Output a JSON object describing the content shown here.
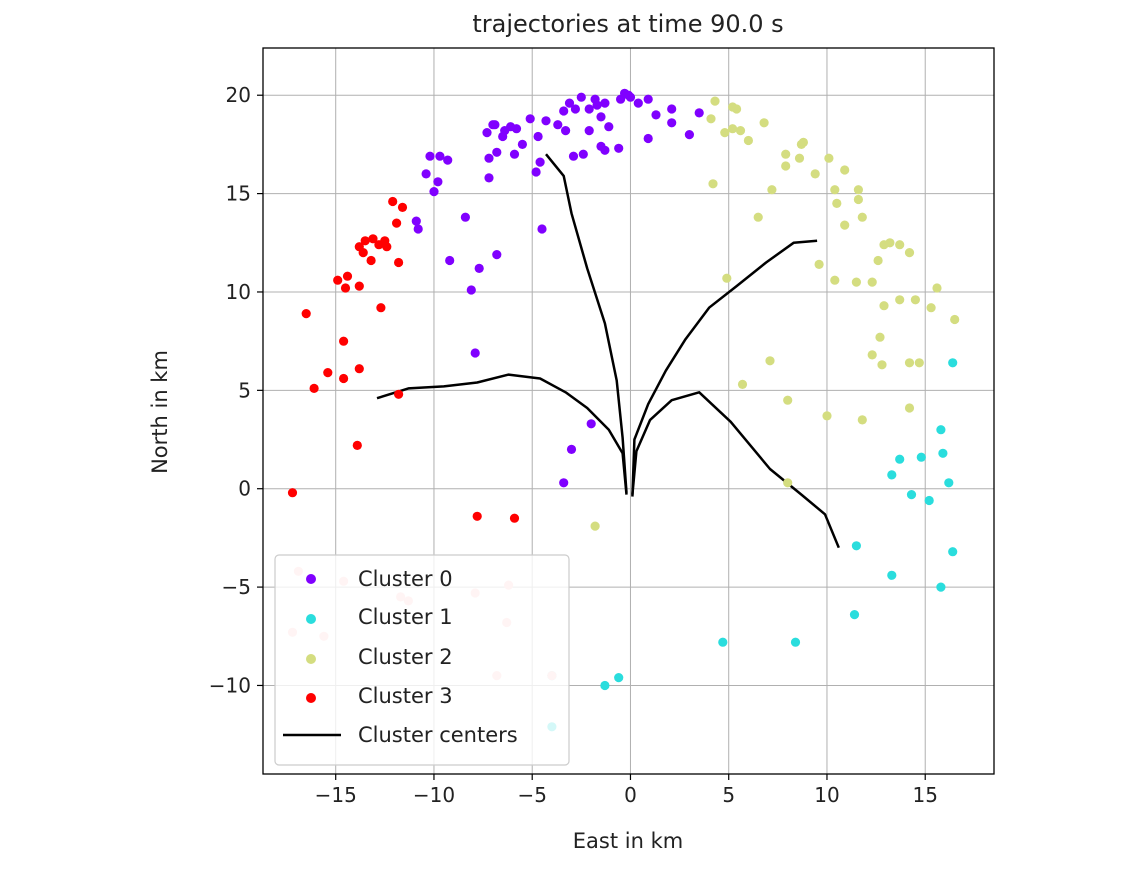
{
  "chart_data": {
    "type": "scatter",
    "title": "trajectories at time 90.0 s",
    "xlabel": "East in km",
    "ylabel": "North in km",
    "xlim": [
      -18.7,
      18.5
    ],
    "ylim": [
      -14.5,
      22.4
    ],
    "xticks": [
      -15,
      -10,
      -5,
      0,
      5,
      10,
      15
    ],
    "xtick_labels": [
      "−15",
      "−10",
      "−5",
      "0",
      "5",
      "10",
      "15"
    ],
    "yticks": [
      -10,
      -5,
      0,
      5,
      10,
      15,
      20
    ],
    "ytick_labels": [
      "−10",
      "−5",
      "0",
      "5",
      "10",
      "15",
      "20"
    ],
    "grid": true,
    "legend_position": "lower-left",
    "series": [
      {
        "name": "Cluster 0",
        "color": "#8000ff",
        "points": [
          [
            -4.5,
            13.2
          ],
          [
            -8.4,
            13.8
          ],
          [
            -9.2,
            11.6
          ],
          [
            -6.8,
            11.9
          ],
          [
            -7.7,
            11.2
          ],
          [
            -8.1,
            10.1
          ],
          [
            -7.9,
            6.9
          ],
          [
            -10.9,
            13.6
          ],
          [
            -10.8,
            13.2
          ],
          [
            -9.8,
            15.6
          ],
          [
            -10.0,
            15.1
          ],
          [
            -10.2,
            16.9
          ],
          [
            -9.7,
            16.9
          ],
          [
            -9.3,
            16.7
          ],
          [
            -10.4,
            16.0
          ],
          [
            -7.2,
            15.8
          ],
          [
            -7.2,
            16.8
          ],
          [
            -6.8,
            17.1
          ],
          [
            -6.5,
            17.9
          ],
          [
            -6.1,
            18.4
          ],
          [
            -5.9,
            17.0
          ],
          [
            -5.5,
            17.5
          ],
          [
            -4.8,
            16.1
          ],
          [
            -4.6,
            16.6
          ],
          [
            -4.3,
            18.7
          ],
          [
            -3.7,
            18.5
          ],
          [
            -3.4,
            19.2
          ],
          [
            -3.1,
            19.6
          ],
          [
            -2.5,
            19.9
          ],
          [
            -2.1,
            19.3
          ],
          [
            -1.7,
            19.5
          ],
          [
            -1.3,
            19.6
          ],
          [
            -1.5,
            18.9
          ],
          [
            -1.1,
            18.4
          ],
          [
            -0.6,
            17.3
          ],
          [
            -1.5,
            17.4
          ],
          [
            -2.1,
            18.2
          ],
          [
            -2.4,
            17.0
          ],
          [
            -3.3,
            18.2
          ],
          [
            -0.5,
            19.8
          ],
          [
            -0.1,
            20.0
          ],
          [
            0.4,
            19.6
          ],
          [
            0.9,
            19.8
          ],
          [
            1.3,
            19.0
          ],
          [
            2.1,
            19.3
          ],
          [
            2.1,
            18.6
          ],
          [
            3.0,
            18.0
          ],
          [
            3.5,
            19.1
          ],
          [
            0.9,
            17.8
          ],
          [
            -7.3,
            18.1
          ],
          [
            -7.0,
            18.5
          ],
          [
            -6.4,
            18.2
          ],
          [
            -5.1,
            18.8
          ],
          [
            -2.9,
            16.9
          ],
          [
            -0.3,
            20.1
          ],
          [
            0.0,
            19.9
          ],
          [
            -2.0,
            3.3
          ],
          [
            -3.0,
            2.0
          ],
          [
            -3.4,
            0.3
          ],
          [
            -5.8,
            18.3
          ],
          [
            -4.7,
            17.9
          ],
          [
            -1.8,
            19.8
          ],
          [
            -2.8,
            19.3
          ],
          [
            -6.9,
            18.5
          ],
          [
            -1.3,
            17.2
          ]
        ]
      },
      {
        "name": "Cluster 1",
        "color": "#2adddd",
        "points": [
          [
            16.4,
            6.4
          ],
          [
            15.8,
            3.0
          ],
          [
            15.9,
            1.8
          ],
          [
            13.7,
            1.5
          ],
          [
            14.8,
            1.6
          ],
          [
            13.3,
            0.7
          ],
          [
            14.3,
            -0.3
          ],
          [
            15.2,
            -0.6
          ],
          [
            16.2,
            0.3
          ],
          [
            11.5,
            -2.9
          ],
          [
            16.4,
            -3.2
          ],
          [
            13.3,
            -4.4
          ],
          [
            15.8,
            -5.0
          ],
          [
            11.4,
            -6.4
          ],
          [
            8.4,
            -7.8
          ],
          [
            4.7,
            -7.8
          ],
          [
            -0.6,
            -9.6
          ],
          [
            -1.3,
            -10.0
          ],
          [
            -4.0,
            -9.5
          ],
          [
            -4.0,
            -12.1
          ]
        ]
      },
      {
        "name": "Cluster 2",
        "color": "#d4dd80",
        "points": [
          [
            4.1,
            18.8
          ],
          [
            4.3,
            19.7
          ],
          [
            4.8,
            18.1
          ],
          [
            5.2,
            19.4
          ],
          [
            5.4,
            19.3
          ],
          [
            5.2,
            18.3
          ],
          [
            5.6,
            18.2
          ],
          [
            6.0,
            17.7
          ],
          [
            6.8,
            18.6
          ],
          [
            7.9,
            17.0
          ],
          [
            7.9,
            16.4
          ],
          [
            8.7,
            17.5
          ],
          [
            8.8,
            17.6
          ],
          [
            8.6,
            16.8
          ],
          [
            9.4,
            16.0
          ],
          [
            10.1,
            16.8
          ],
          [
            10.4,
            15.2
          ],
          [
            10.5,
            14.5
          ],
          [
            10.9,
            16.2
          ],
          [
            11.6,
            15.2
          ],
          [
            11.6,
            14.7
          ],
          [
            11.8,
            13.8
          ],
          [
            10.9,
            13.4
          ],
          [
            11.5,
            10.5
          ],
          [
            12.6,
            11.6
          ],
          [
            12.9,
            12.4
          ],
          [
            13.2,
            12.5
          ],
          [
            13.7,
            12.4
          ],
          [
            14.2,
            12.0
          ],
          [
            12.3,
            10.5
          ],
          [
            12.9,
            9.3
          ],
          [
            13.7,
            9.6
          ],
          [
            14.5,
            9.6
          ],
          [
            15.6,
            10.2
          ],
          [
            15.3,
            9.2
          ],
          [
            16.5,
            8.6
          ],
          [
            12.7,
            7.7
          ],
          [
            12.3,
            6.8
          ],
          [
            12.8,
            6.3
          ],
          [
            14.2,
            6.4
          ],
          [
            14.7,
            6.4
          ],
          [
            14.2,
            4.1
          ],
          [
            11.8,
            3.5
          ],
          [
            10.0,
            3.7
          ],
          [
            8.0,
            4.5
          ],
          [
            7.1,
            6.5
          ],
          [
            5.7,
            5.3
          ],
          [
            4.9,
            10.7
          ],
          [
            6.5,
            13.8
          ],
          [
            7.2,
            15.2
          ],
          [
            4.2,
            15.5
          ],
          [
            9.6,
            11.4
          ],
          [
            10.4,
            10.6
          ],
          [
            8.0,
            0.3
          ],
          [
            -1.8,
            -1.9
          ]
        ]
      },
      {
        "name": "Cluster 3",
        "color": "#ff0000",
        "points": [
          [
            -12.1,
            14.6
          ],
          [
            -11.6,
            14.3
          ],
          [
            -11.9,
            13.5
          ],
          [
            -12.5,
            12.6
          ],
          [
            -12.4,
            12.3
          ],
          [
            -12.8,
            12.4
          ],
          [
            -13.1,
            12.7
          ],
          [
            -13.5,
            12.6
          ],
          [
            -13.6,
            12.0
          ],
          [
            -13.8,
            12.3
          ],
          [
            -13.2,
            11.6
          ],
          [
            -11.8,
            11.5
          ],
          [
            -13.8,
            10.3
          ],
          [
            -14.5,
            10.2
          ],
          [
            -14.4,
            10.8
          ],
          [
            -14.9,
            10.6
          ],
          [
            -12.7,
            9.2
          ],
          [
            -16.5,
            8.9
          ],
          [
            -14.6,
            7.5
          ],
          [
            -13.8,
            6.1
          ],
          [
            -14.6,
            5.6
          ],
          [
            -15.4,
            5.9
          ],
          [
            -16.1,
            5.1
          ],
          [
            -11.8,
            4.8
          ],
          [
            -13.9,
            2.2
          ],
          [
            -17.2,
            -0.2
          ],
          [
            -7.8,
            -1.4
          ],
          [
            -5.9,
            -1.5
          ]
        ]
      },
      {
        "name": "",
        "color": "#ffc8c8",
        "points": [
          [
            -16.9,
            -4.2
          ],
          [
            -14.6,
            -4.7
          ],
          [
            -17.2,
            -7.3
          ],
          [
            -15.6,
            -7.5
          ],
          [
            -11.7,
            -5.5
          ],
          [
            -11.3,
            -5.7
          ],
          [
            -7.9,
            -5.3
          ],
          [
            -6.2,
            -4.9
          ],
          [
            -6.3,
            -6.8
          ],
          [
            -6.8,
            -9.5
          ],
          [
            -4.0,
            -9.5
          ]
        ]
      }
    ],
    "centers_label": "Cluster centers",
    "centers_color": "#000000",
    "centers": [
      [
        [
          -4.3,
          17.0
        ],
        [
          -3.4,
          15.9
        ],
        [
          -3.0,
          14.0
        ],
        [
          -2.2,
          11.2
        ],
        [
          -1.3,
          8.4
        ],
        [
          -0.7,
          5.5
        ],
        [
          -0.4,
          2.6
        ],
        [
          -0.2,
          -0.2
        ]
      ],
      [
        [
          -12.9,
          4.6
        ],
        [
          -11.3,
          5.1
        ],
        [
          -9.5,
          5.2
        ],
        [
          -7.8,
          5.4
        ],
        [
          -6.2,
          5.8
        ],
        [
          -4.6,
          5.6
        ],
        [
          -3.3,
          4.9
        ],
        [
          -2.2,
          4.1
        ],
        [
          -1.1,
          3.0
        ],
        [
          -0.4,
          1.8
        ],
        [
          -0.2,
          -0.3
        ]
      ],
      [
        [
          0.1,
          -0.4
        ],
        [
          0.2,
          2.5
        ],
        [
          0.9,
          4.3
        ],
        [
          1.8,
          6.0
        ],
        [
          2.8,
          7.6
        ],
        [
          4.0,
          9.2
        ],
        [
          5.4,
          10.3
        ],
        [
          6.9,
          11.5
        ],
        [
          8.3,
          12.5
        ],
        [
          9.5,
          12.6
        ]
      ],
      [
        [
          0.1,
          -0.3
        ],
        [
          0.3,
          1.9
        ],
        [
          1.0,
          3.5
        ],
        [
          2.1,
          4.5
        ],
        [
          3.5,
          4.9
        ],
        [
          5.1,
          3.4
        ],
        [
          7.1,
          1.0
        ],
        [
          8.7,
          -0.3
        ],
        [
          9.9,
          -1.3
        ],
        [
          10.6,
          -3.0
        ]
      ]
    ],
    "legend": [
      "Cluster 0",
      "Cluster 1",
      "Cluster 2",
      "Cluster 3",
      "Cluster centers"
    ]
  }
}
